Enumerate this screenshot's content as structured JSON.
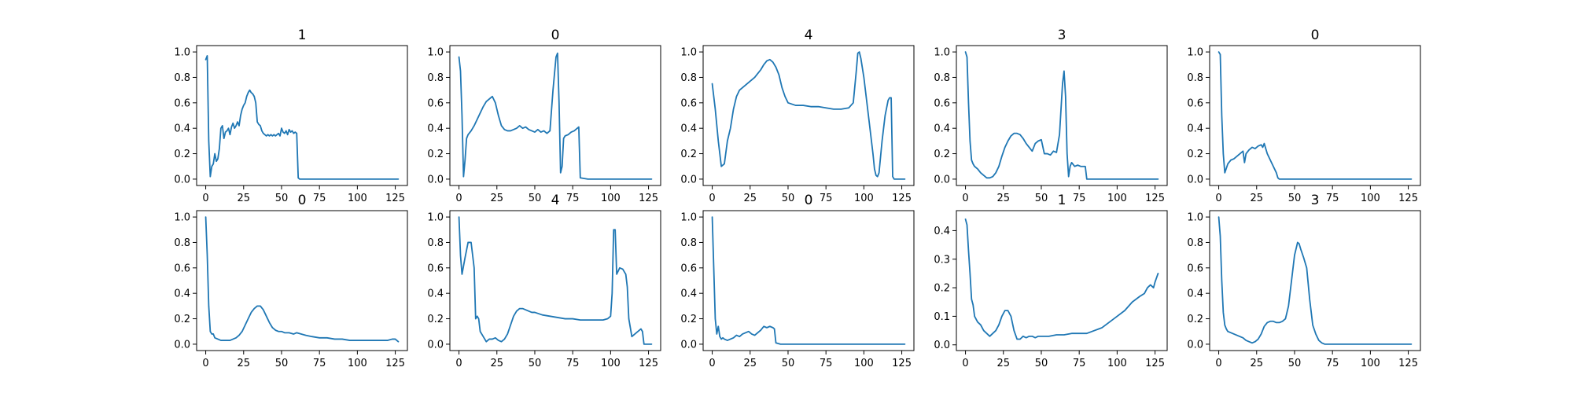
{
  "figure": {
    "width": 2000,
    "height": 500,
    "line_color": "#1f77b4"
  },
  "chart_data": [
    {
      "type": "line",
      "title": "1",
      "xlim": [
        -6,
        133
      ],
      "ylim": [
        -0.05,
        1.05
      ],
      "xticks": [
        0,
        25,
        50,
        75,
        100,
        125
      ],
      "yticks": [
        0.0,
        0.2,
        0.4,
        0.6,
        0.8,
        1.0
      ],
      "x": [
        0,
        1,
        2,
        3,
        4,
        5,
        6,
        7,
        8,
        9,
        10,
        11,
        12,
        13,
        14,
        15,
        16,
        17,
        18,
        19,
        20,
        21,
        22,
        23,
        24,
        25,
        26,
        27,
        28,
        29,
        30,
        31,
        32,
        33,
        34,
        35,
        36,
        37,
        38,
        39,
        40,
        41,
        42,
        43,
        44,
        45,
        46,
        47,
        48,
        49,
        50,
        51,
        52,
        53,
        54,
        55,
        56,
        57,
        58,
        59,
        60,
        61,
        62,
        63,
        64,
        65,
        66,
        67,
        68,
        69,
        70,
        75,
        80,
        90,
        100,
        110,
        120,
        127
      ],
      "y": [
        0.94,
        0.97,
        0.3,
        0.02,
        0.1,
        0.12,
        0.2,
        0.14,
        0.16,
        0.24,
        0.4,
        0.42,
        0.32,
        0.37,
        0.38,
        0.4,
        0.35,
        0.41,
        0.44,
        0.4,
        0.42,
        0.45,
        0.42,
        0.5,
        0.55,
        0.58,
        0.6,
        0.65,
        0.68,
        0.7,
        0.68,
        0.67,
        0.65,
        0.6,
        0.45,
        0.43,
        0.42,
        0.38,
        0.36,
        0.35,
        0.34,
        0.35,
        0.34,
        0.35,
        0.34,
        0.35,
        0.34,
        0.35,
        0.36,
        0.34,
        0.4,
        0.37,
        0.36,
        0.38,
        0.35,
        0.39,
        0.37,
        0.38,
        0.36,
        0.37,
        0.36,
        0.01,
        0.0,
        0.0,
        0.0,
        0.0,
        0.0,
        0.0,
        0.0,
        0.0,
        0.0,
        0.0,
        0.0,
        0.0,
        0.0,
        0.0,
        0.0,
        0.0
      ]
    },
    {
      "type": "line",
      "title": "0",
      "xlim": [
        -6,
        133
      ],
      "ylim": [
        -0.05,
        1.05
      ],
      "xticks": [
        0,
        25,
        50,
        75,
        100,
        125
      ],
      "yticks": [
        0.0,
        0.2,
        0.4,
        0.6,
        0.8,
        1.0
      ],
      "x": [
        0,
        1,
        2,
        3,
        4,
        5,
        6,
        8,
        10,
        12,
        14,
        16,
        18,
        20,
        22,
        24,
        25,
        26,
        28,
        30,
        32,
        34,
        36,
        38,
        40,
        42,
        44,
        46,
        48,
        50,
        52,
        54,
        56,
        58,
        60,
        62,
        64,
        65,
        66,
        67,
        68,
        69,
        70,
        72,
        74,
        76,
        78,
        79,
        80,
        85,
        90,
        100,
        110,
        120,
        127
      ],
      "y": [
        0.96,
        0.85,
        0.5,
        0.02,
        0.15,
        0.32,
        0.35,
        0.38,
        0.42,
        0.47,
        0.52,
        0.57,
        0.61,
        0.63,
        0.65,
        0.6,
        0.55,
        0.5,
        0.42,
        0.39,
        0.38,
        0.38,
        0.39,
        0.4,
        0.42,
        0.4,
        0.41,
        0.39,
        0.38,
        0.37,
        0.39,
        0.37,
        0.38,
        0.36,
        0.38,
        0.7,
        0.96,
        0.99,
        0.6,
        0.05,
        0.1,
        0.32,
        0.34,
        0.35,
        0.37,
        0.38,
        0.4,
        0.41,
        0.01,
        0.0,
        0.0,
        0.0,
        0.0,
        0.0,
        0.0
      ]
    },
    {
      "type": "line",
      "title": "4",
      "xlim": [
        -6,
        133
      ],
      "ylim": [
        -0.05,
        1.05
      ],
      "xticks": [
        0,
        25,
        50,
        75,
        100,
        125
      ],
      "yticks": [
        0.0,
        0.2,
        0.4,
        0.6,
        0.8,
        1.0
      ],
      "x": [
        0,
        2,
        4,
        6,
        8,
        10,
        12,
        14,
        16,
        18,
        20,
        22,
        24,
        26,
        28,
        30,
        32,
        34,
        36,
        38,
        40,
        42,
        44,
        46,
        48,
        50,
        55,
        60,
        65,
        70,
        75,
        80,
        85,
        90,
        93,
        95,
        96,
        97,
        98,
        100,
        102,
        104,
        106,
        107,
        108,
        109,
        110,
        112,
        114,
        116,
        117,
        118,
        119,
        120,
        125,
        127
      ],
      "y": [
        0.75,
        0.55,
        0.3,
        0.1,
        0.12,
        0.3,
        0.4,
        0.55,
        0.65,
        0.7,
        0.72,
        0.74,
        0.76,
        0.78,
        0.8,
        0.83,
        0.86,
        0.9,
        0.93,
        0.94,
        0.92,
        0.88,
        0.82,
        0.72,
        0.65,
        0.6,
        0.58,
        0.58,
        0.57,
        0.57,
        0.56,
        0.55,
        0.55,
        0.56,
        0.6,
        0.85,
        0.99,
        1.0,
        0.95,
        0.8,
        0.6,
        0.4,
        0.2,
        0.08,
        0.03,
        0.02,
        0.05,
        0.3,
        0.5,
        0.62,
        0.64,
        0.64,
        0.02,
        0.0,
        0.0,
        0.0
      ]
    },
    {
      "type": "line",
      "title": "3",
      "xlim": [
        -6,
        133
      ],
      "ylim": [
        -0.05,
        1.05
      ],
      "xticks": [
        0,
        25,
        50,
        75,
        100,
        125
      ],
      "yticks": [
        0.0,
        0.2,
        0.4,
        0.6,
        0.8,
        1.0
      ],
      "x": [
        0,
        1,
        2,
        3,
        4,
        5,
        6,
        8,
        10,
        12,
        14,
        16,
        18,
        20,
        22,
        24,
        26,
        28,
        30,
        32,
        34,
        36,
        38,
        40,
        42,
        44,
        46,
        48,
        50,
        52,
        54,
        56,
        58,
        60,
        62,
        64,
        65,
        66,
        67,
        68,
        69,
        70,
        72,
        74,
        76,
        78,
        79,
        80,
        85,
        90,
        100,
        110,
        120,
        127
      ],
      "y": [
        1.0,
        0.96,
        0.6,
        0.3,
        0.15,
        0.12,
        0.1,
        0.08,
        0.05,
        0.03,
        0.01,
        0.01,
        0.02,
        0.05,
        0.1,
        0.18,
        0.25,
        0.3,
        0.34,
        0.36,
        0.36,
        0.35,
        0.32,
        0.28,
        0.25,
        0.22,
        0.28,
        0.3,
        0.31,
        0.2,
        0.2,
        0.19,
        0.22,
        0.21,
        0.35,
        0.75,
        0.85,
        0.65,
        0.2,
        0.02,
        0.1,
        0.13,
        0.1,
        0.11,
        0.1,
        0.1,
        0.1,
        0.0,
        0.0,
        0.0,
        0.0,
        0.0,
        0.0,
        0.0
      ]
    },
    {
      "type": "line",
      "title": "0",
      "xlim": [
        -6,
        133
      ],
      "ylim": [
        -0.05,
        1.05
      ],
      "xticks": [
        0,
        25,
        50,
        75,
        100,
        125
      ],
      "yticks": [
        0.0,
        0.2,
        0.4,
        0.6,
        0.8,
        1.0
      ],
      "x": [
        0,
        1,
        2,
        3,
        4,
        6,
        8,
        10,
        12,
        14,
        16,
        17,
        18,
        20,
        22,
        24,
        26,
        28,
        29,
        30,
        32,
        34,
        36,
        38,
        39,
        40,
        45,
        50,
        60,
        70,
        80,
        90,
        100,
        110,
        120,
        127
      ],
      "y": [
        1.0,
        0.98,
        0.5,
        0.2,
        0.05,
        0.12,
        0.15,
        0.16,
        0.18,
        0.2,
        0.22,
        0.13,
        0.2,
        0.23,
        0.25,
        0.24,
        0.26,
        0.27,
        0.25,
        0.28,
        0.2,
        0.15,
        0.1,
        0.05,
        0.01,
        0.0,
        0.0,
        0.0,
        0.0,
        0.0,
        0.0,
        0.0,
        0.0,
        0.0,
        0.0,
        0.0
      ]
    },
    {
      "type": "line",
      "title": "0",
      "xlim": [
        -6,
        133
      ],
      "ylim": [
        -0.05,
        1.05
      ],
      "xticks": [
        0,
        25,
        50,
        75,
        100,
        125
      ],
      "yticks": [
        0.0,
        0.2,
        0.4,
        0.6,
        0.8,
        1.0
      ],
      "x": [
        0,
        1,
        2,
        3,
        4,
        5,
        6,
        8,
        10,
        12,
        14,
        16,
        18,
        20,
        22,
        24,
        26,
        28,
        30,
        32,
        34,
        36,
        38,
        40,
        42,
        44,
        46,
        48,
        50,
        52,
        55,
        58,
        60,
        63,
        66,
        70,
        75,
        80,
        85,
        90,
        95,
        100,
        105,
        110,
        115,
        120,
        123,
        125,
        127
      ],
      "y": [
        1.0,
        0.7,
        0.3,
        0.1,
        0.08,
        0.08,
        0.05,
        0.04,
        0.03,
        0.03,
        0.03,
        0.03,
        0.04,
        0.05,
        0.07,
        0.1,
        0.15,
        0.2,
        0.25,
        0.28,
        0.3,
        0.3,
        0.27,
        0.22,
        0.17,
        0.13,
        0.11,
        0.1,
        0.1,
        0.09,
        0.09,
        0.08,
        0.09,
        0.08,
        0.07,
        0.06,
        0.05,
        0.05,
        0.04,
        0.04,
        0.03,
        0.03,
        0.03,
        0.03,
        0.03,
        0.03,
        0.04,
        0.04,
        0.02
      ]
    },
    {
      "type": "line",
      "title": "4",
      "xlim": [
        -6,
        133
      ],
      "ylim": [
        -0.05,
        1.05
      ],
      "xticks": [
        0,
        25,
        50,
        75,
        100,
        125
      ],
      "yticks": [
        0.0,
        0.2,
        0.4,
        0.6,
        0.8,
        1.0
      ],
      "x": [
        0,
        1,
        2,
        4,
        6,
        8,
        10,
        11,
        12,
        13,
        14,
        16,
        18,
        20,
        22,
        24,
        26,
        28,
        30,
        32,
        34,
        36,
        38,
        40,
        42,
        44,
        46,
        48,
        50,
        55,
        60,
        65,
        70,
        75,
        80,
        85,
        90,
        95,
        98,
        100,
        101,
        102,
        103,
        104,
        106,
        108,
        110,
        111,
        112,
        114,
        116,
        118,
        120,
        121,
        122,
        125,
        127
      ],
      "y": [
        1.0,
        0.7,
        0.55,
        0.68,
        0.8,
        0.8,
        0.6,
        0.2,
        0.22,
        0.2,
        0.1,
        0.06,
        0.02,
        0.04,
        0.04,
        0.05,
        0.03,
        0.02,
        0.04,
        0.08,
        0.15,
        0.22,
        0.26,
        0.28,
        0.28,
        0.27,
        0.26,
        0.25,
        0.25,
        0.23,
        0.22,
        0.21,
        0.2,
        0.2,
        0.19,
        0.19,
        0.19,
        0.19,
        0.2,
        0.22,
        0.4,
        0.9,
        0.9,
        0.55,
        0.6,
        0.59,
        0.55,
        0.45,
        0.2,
        0.06,
        0.08,
        0.1,
        0.12,
        0.1,
        0.0,
        0.0,
        0.0
      ]
    },
    {
      "type": "line",
      "title": "0",
      "xlim": [
        -6,
        133
      ],
      "ylim": [
        -0.05,
        1.05
      ],
      "xticks": [
        0,
        25,
        50,
        75,
        100,
        125
      ],
      "yticks": [
        0.0,
        0.2,
        0.4,
        0.6,
        0.8,
        1.0
      ],
      "x": [
        0,
        1,
        2,
        3,
        4,
        5,
        6,
        7,
        8,
        10,
        12,
        14,
        16,
        18,
        20,
        22,
        24,
        26,
        28,
        30,
        32,
        34,
        36,
        38,
        40,
        41,
        42,
        45,
        50,
        60,
        70,
        80,
        90,
        100,
        110,
        120,
        127
      ],
      "y": [
        1.0,
        0.6,
        0.2,
        0.08,
        0.14,
        0.06,
        0.04,
        0.05,
        0.04,
        0.03,
        0.04,
        0.05,
        0.07,
        0.06,
        0.08,
        0.09,
        0.1,
        0.08,
        0.07,
        0.09,
        0.11,
        0.14,
        0.13,
        0.14,
        0.13,
        0.12,
        0.01,
        0.0,
        0.0,
        0.0,
        0.0,
        0.0,
        0.0,
        0.0,
        0.0,
        0.0,
        0.0
      ]
    },
    {
      "type": "line",
      "title": "1",
      "xlim": [
        -6,
        133
      ],
      "ylim": [
        -0.02,
        0.47
      ],
      "xticks": [
        0,
        25,
        50,
        75,
        100,
        125
      ],
      "yticks": [
        0.0,
        0.1,
        0.2,
        0.3,
        0.4
      ],
      "x": [
        0,
        1,
        2,
        3,
        4,
        5,
        6,
        8,
        10,
        12,
        14,
        16,
        18,
        20,
        22,
        24,
        26,
        28,
        30,
        32,
        34,
        36,
        38,
        40,
        42,
        44,
        46,
        48,
        50,
        55,
        60,
        65,
        70,
        75,
        80,
        85,
        90,
        95,
        100,
        105,
        110,
        115,
        118,
        120,
        122,
        124,
        125,
        127
      ],
      "y": [
        0.44,
        0.42,
        0.33,
        0.25,
        0.16,
        0.14,
        0.1,
        0.08,
        0.07,
        0.05,
        0.04,
        0.03,
        0.04,
        0.05,
        0.07,
        0.1,
        0.12,
        0.12,
        0.1,
        0.05,
        0.02,
        0.02,
        0.03,
        0.025,
        0.03,
        0.03,
        0.025,
        0.03,
        0.03,
        0.03,
        0.035,
        0.035,
        0.04,
        0.04,
        0.04,
        0.05,
        0.06,
        0.08,
        0.1,
        0.12,
        0.15,
        0.17,
        0.18,
        0.2,
        0.21,
        0.2,
        0.22,
        0.25
      ]
    },
    {
      "type": "line",
      "title": "3",
      "xlim": [
        -6,
        133
      ],
      "ylim": [
        -0.05,
        1.05
      ],
      "xticks": [
        0,
        25,
        50,
        75,
        100,
        125
      ],
      "yticks": [
        0.0,
        0.2,
        0.4,
        0.6,
        0.8,
        1.0
      ],
      "x": [
        0,
        1,
        2,
        3,
        4,
        5,
        6,
        8,
        10,
        12,
        14,
        16,
        18,
        20,
        22,
        24,
        26,
        28,
        30,
        32,
        34,
        36,
        38,
        40,
        42,
        44,
        46,
        48,
        50,
        52,
        53,
        54,
        56,
        58,
        60,
        62,
        64,
        66,
        68,
        70,
        75,
        80,
        90,
        100,
        110,
        120,
        127
      ],
      "y": [
        1.0,
        0.85,
        0.5,
        0.25,
        0.15,
        0.12,
        0.1,
        0.09,
        0.08,
        0.07,
        0.06,
        0.05,
        0.03,
        0.02,
        0.01,
        0.02,
        0.04,
        0.08,
        0.14,
        0.17,
        0.18,
        0.18,
        0.17,
        0.17,
        0.18,
        0.2,
        0.3,
        0.5,
        0.7,
        0.8,
        0.79,
        0.75,
        0.68,
        0.6,
        0.35,
        0.15,
        0.08,
        0.03,
        0.01,
        0.0,
        0.0,
        0.0,
        0.0,
        0.0,
        0.0,
        0.0,
        0.0
      ]
    }
  ]
}
